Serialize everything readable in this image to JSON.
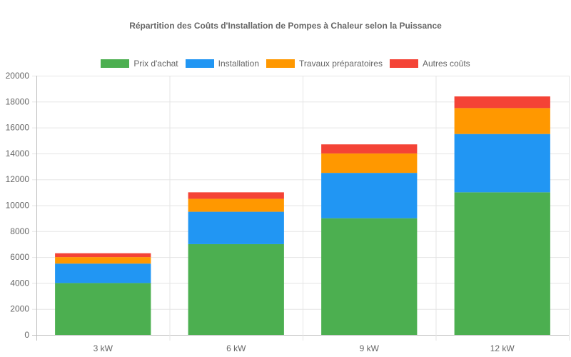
{
  "chart_data": {
    "type": "bar",
    "stacked": true,
    "title": "Répartition des Coûts d'Installation de Pompes à Chaleur selon la Puissance",
    "xlabel": "",
    "ylabel": "",
    "categories": [
      "3 kW",
      "6 kW",
      "9 kW",
      "12 kW"
    ],
    "series": [
      {
        "name": "Prix d'achat",
        "color": "#4caf50",
        "values": [
          4000,
          7000,
          9000,
          11000
        ]
      },
      {
        "name": "Installation",
        "color": "#2196f3",
        "values": [
          1500,
          2500,
          3500,
          4500
        ]
      },
      {
        "name": "Travaux préparatoires",
        "color": "#ff9800",
        "values": [
          500,
          1000,
          1500,
          2000
        ]
      },
      {
        "name": "Autres coûts",
        "color": "#f44336",
        "values": [
          300,
          500,
          700,
          900
        ]
      }
    ],
    "ylim": [
      0,
      20000
    ],
    "yticks": [
      0,
      2000,
      4000,
      6000,
      8000,
      10000,
      12000,
      14000,
      16000,
      18000,
      20000
    ],
    "grid": true,
    "legend_position": "top"
  }
}
